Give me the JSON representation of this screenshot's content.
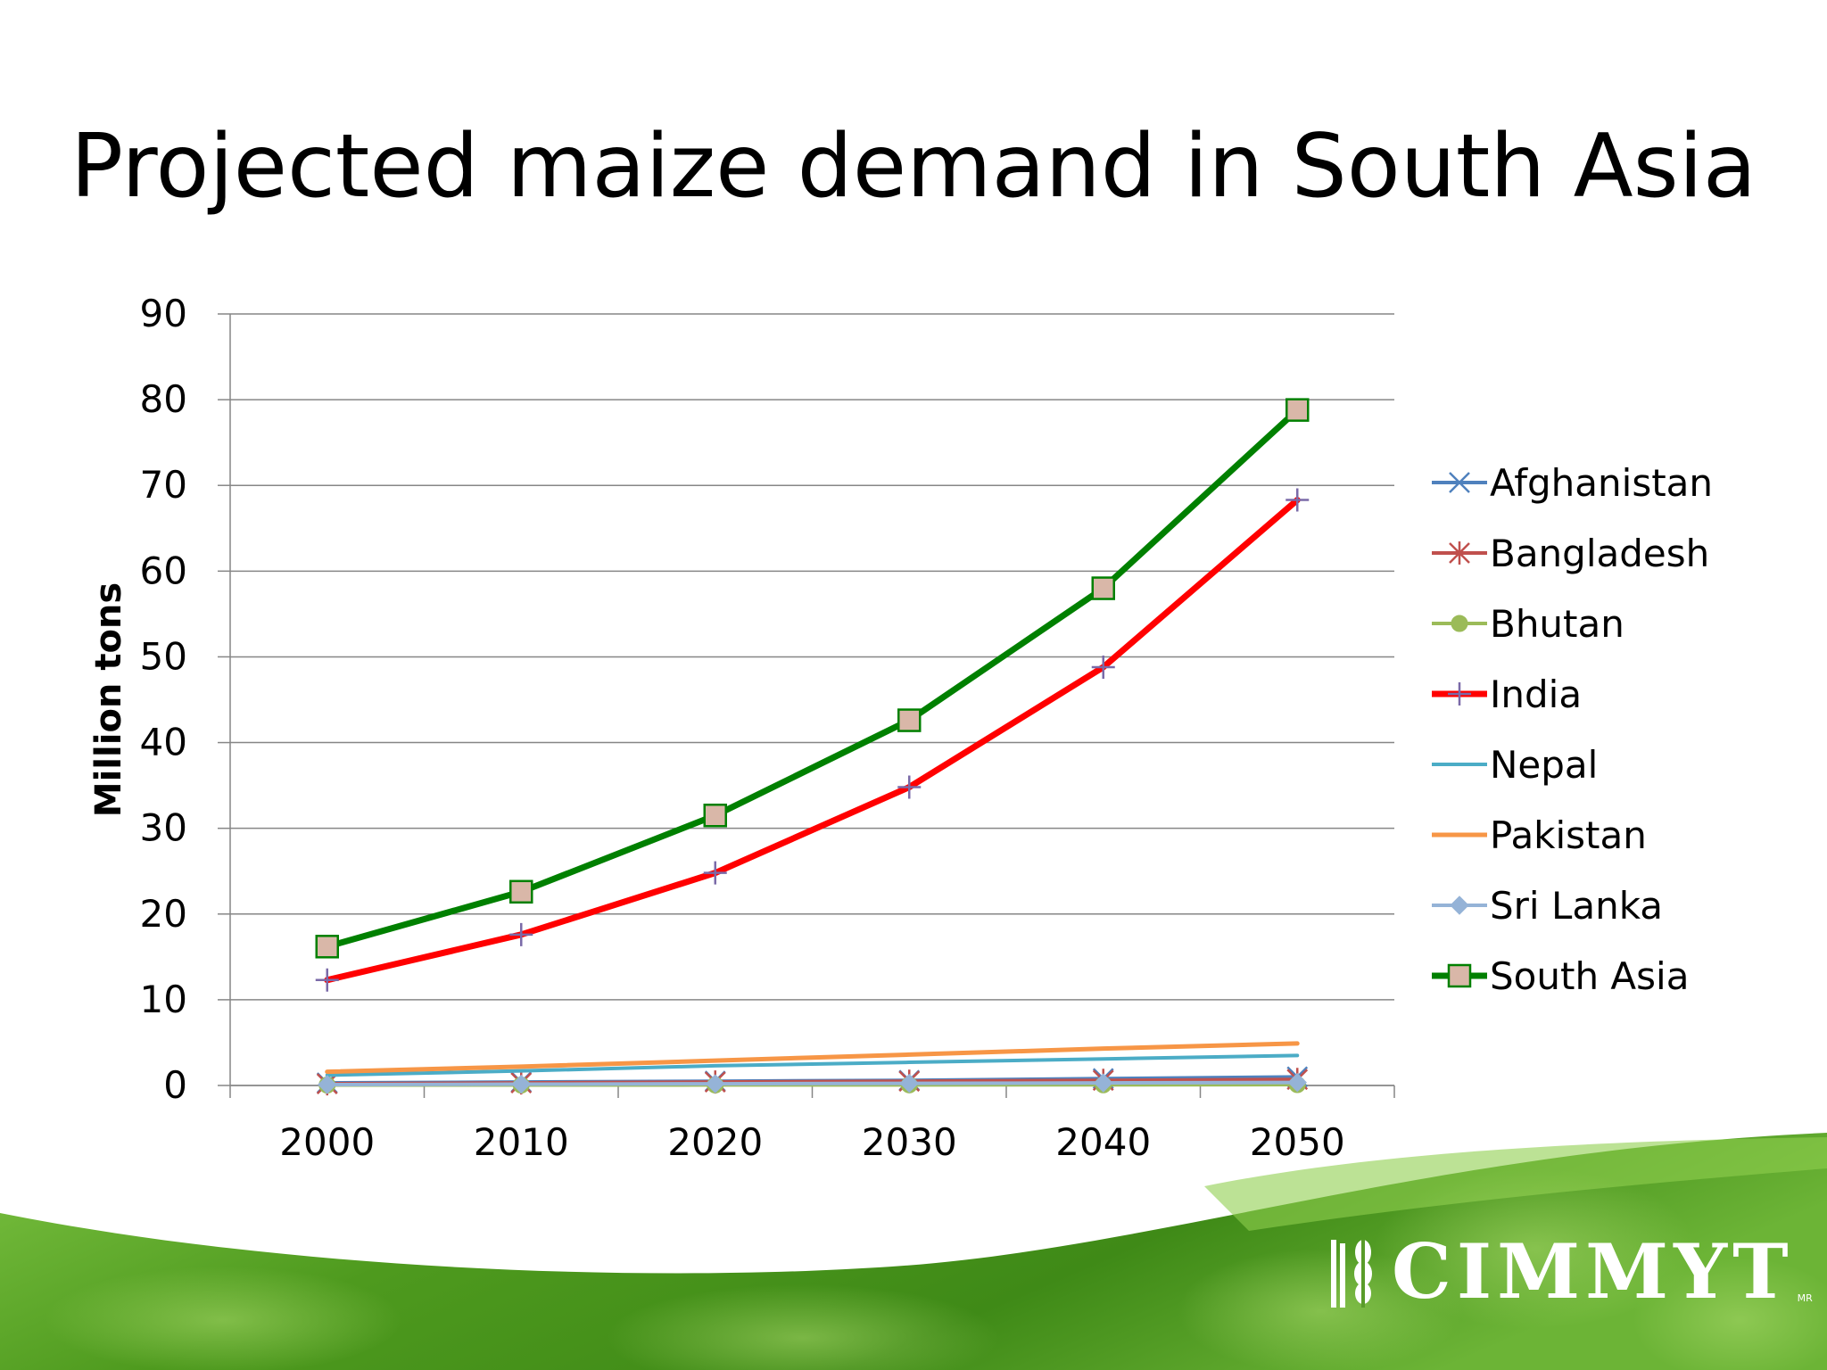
{
  "slide": {
    "title": "Projected maize demand in South Asia"
  },
  "logo": {
    "name": "CIMMYT",
    "mark": "MR"
  },
  "colors": {
    "afghanistan": "#4f81bd",
    "bangladesh": "#c0504d",
    "bhutan": "#9bbb59",
    "india": "#ff0000",
    "nepal": "#4bacc6",
    "pakistan": "#f79646",
    "sri_lanka": "#95b3d7",
    "south_asia": "#008000",
    "south_asia_marker_fill": "#d9b7a8",
    "grid": "#868686",
    "leaf_green": "#4e9a1e"
  },
  "chart_data": {
    "type": "line",
    "title": "",
    "xlabel": "",
    "ylabel": "Million tons",
    "categories": [
      "2000",
      "2010",
      "2020",
      "2030",
      "2040",
      "2050"
    ],
    "ylim": [
      0,
      90
    ],
    "yticks": [
      "0",
      "10",
      "20",
      "30",
      "40",
      "50",
      "60",
      "70",
      "80",
      "90"
    ],
    "grid": true,
    "legend_position": "right",
    "series": [
      {
        "name": "Afghanistan",
        "color": "#4f81bd",
        "marker": "x",
        "width": 4,
        "values": [
          0.3,
          0.4,
          0.5,
          0.6,
          0.8,
          1.0
        ]
      },
      {
        "name": "Bangladesh",
        "color": "#c0504d",
        "marker": "star",
        "width": 4,
        "values": [
          0.2,
          0.3,
          0.4,
          0.5,
          0.6,
          0.7
        ]
      },
      {
        "name": "Bhutan",
        "color": "#9bbb59",
        "marker": "circle",
        "width": 4,
        "values": [
          0.05,
          0.05,
          0.06,
          0.07,
          0.08,
          0.1
        ]
      },
      {
        "name": "India",
        "color": "#ff0000",
        "marker": "plus",
        "width": 7,
        "values": [
          12.3,
          17.6,
          24.8,
          34.8,
          48.8,
          68.3
        ]
      },
      {
        "name": "Nepal",
        "color": "#4bacc6",
        "marker": "none",
        "width": 4,
        "values": [
          1.2,
          1.7,
          2.3,
          2.7,
          3.1,
          3.5
        ]
      },
      {
        "name": "Pakistan",
        "color": "#f79646",
        "marker": "none",
        "width": 5,
        "values": [
          1.6,
          2.2,
          2.9,
          3.6,
          4.3,
          4.9
        ]
      },
      {
        "name": "Sri Lanka",
        "color": "#95b3d7",
        "marker": "diamond",
        "width": 4,
        "values": [
          0.1,
          0.15,
          0.2,
          0.25,
          0.3,
          0.35
        ]
      },
      {
        "name": "South Asia",
        "color": "#008000",
        "marker": "square",
        "width": 7,
        "values": [
          16.2,
          22.6,
          31.5,
          42.6,
          58.0,
          78.8
        ]
      }
    ]
  }
}
